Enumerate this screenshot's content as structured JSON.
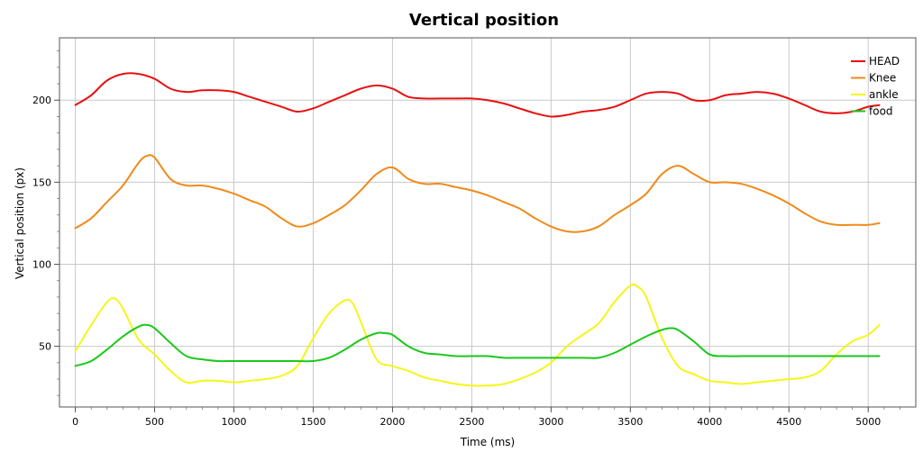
{
  "chart_data": {
    "type": "line",
    "title": "Vertical position",
    "xlabel": "Time (ms)",
    "ylabel": "Vertical position (px)",
    "xlim": [
      -100,
      5300
    ],
    "ylim": [
      13,
      238
    ],
    "xticks": [
      0,
      500,
      1000,
      1500,
      2000,
      2500,
      3000,
      3500,
      4000,
      4500,
      5000
    ],
    "xtick_labels": [
      "0",
      "500",
      "1000",
      "1500",
      "2000",
      "2500",
      "3000",
      "3500",
      "4000",
      "4500",
      "5000"
    ],
    "yticks": [
      50,
      100,
      150,
      200
    ],
    "ytick_labels": [
      "50",
      "100",
      "150",
      "200"
    ],
    "grid": true,
    "legend_position": "top-right",
    "series": [
      {
        "name": "HEAD",
        "color": "#e81010",
        "x": [
          0,
          100,
          200,
          300,
          400,
          500,
          600,
          700,
          800,
          900,
          1000,
          1100,
          1200,
          1300,
          1400,
          1500,
          1600,
          1700,
          1800,
          1900,
          2000,
          2100,
          2200,
          2300,
          2400,
          2500,
          2600,
          2700,
          2800,
          2900,
          3000,
          3100,
          3200,
          3300,
          3400,
          3500,
          3600,
          3700,
          3800,
          3900,
          4000,
          4100,
          4200,
          4300,
          4400,
          4500,
          4600,
          4700,
          4800,
          4900,
          5000,
          5070
        ],
        "y": [
          197,
          203,
          212,
          216,
          216,
          213,
          207,
          205,
          206,
          206,
          205,
          202,
          199,
          196,
          193,
          195,
          199,
          203,
          207,
          209,
          207,
          202,
          201,
          201,
          201,
          201,
          200,
          198,
          195,
          192,
          190,
          191,
          193,
          194,
          196,
          200,
          204,
          205,
          204,
          200,
          200,
          203,
          204,
          205,
          204,
          201,
          197,
          193,
          192,
          193,
          196,
          197
        ]
      },
      {
        "name": "Knee",
        "color": "#f08a1a",
        "x": [
          0,
          100,
          200,
          300,
          400,
          450,
          500,
          600,
          700,
          800,
          900,
          1000,
          1100,
          1200,
          1300,
          1400,
          1500,
          1600,
          1700,
          1800,
          1900,
          2000,
          2100,
          2200,
          2300,
          2400,
          2500,
          2600,
          2700,
          2800,
          2900,
          3000,
          3100,
          3200,
          3300,
          3400,
          3500,
          3600,
          3700,
          3800,
          3900,
          4000,
          4100,
          4200,
          4300,
          4400,
          4500,
          4600,
          4700,
          4800,
          4900,
          5000,
          5070
        ],
        "y": [
          122,
          128,
          138,
          148,
          162,
          166,
          165,
          152,
          148,
          148,
          146,
          143,
          139,
          135,
          128,
          123,
          125,
          130,
          136,
          145,
          155,
          159,
          152,
          149,
          149,
          147,
          145,
          142,
          138,
          134,
          128,
          123,
          120,
          120,
          123,
          130,
          136,
          143,
          155,
          160,
          155,
          150,
          150,
          149,
          146,
          142,
          137,
          131,
          126,
          124,
          124,
          124,
          125
        ]
      },
      {
        "name": "ankle",
        "color": "#f5f51a",
        "x": [
          0,
          100,
          200,
          250,
          300,
          400,
          500,
          600,
          700,
          800,
          900,
          1000,
          1100,
          1200,
          1300,
          1400,
          1500,
          1600,
          1700,
          1750,
          1800,
          1900,
          2000,
          2100,
          2200,
          2300,
          2400,
          2500,
          2600,
          2700,
          2800,
          2900,
          3000,
          3100,
          3200,
          3300,
          3400,
          3500,
          3550,
          3600,
          3700,
          3800,
          3900,
          4000,
          4100,
          4200,
          4300,
          4400,
          4500,
          4600,
          4700,
          4800,
          4900,
          5000,
          5070
        ],
        "y": [
          47,
          63,
          77,
          79,
          73,
          54,
          45,
          35,
          28,
          29,
          29,
          28,
          29,
          30,
          32,
          38,
          55,
          70,
          78,
          76,
          65,
          42,
          38,
          35,
          31,
          29,
          27,
          26,
          26,
          27,
          30,
          34,
          40,
          50,
          57,
          64,
          77,
          87,
          86,
          80,
          55,
          38,
          33,
          29,
          28,
          27,
          28,
          29,
          30,
          31,
          35,
          45,
          53,
          57,
          63
        ]
      },
      {
        "name": "food",
        "color": "#1ac81a",
        "x": [
          0,
          100,
          200,
          300,
          400,
          450,
          500,
          600,
          700,
          800,
          900,
          1000,
          1100,
          1200,
          1300,
          1400,
          1500,
          1600,
          1700,
          1800,
          1900,
          1950,
          2000,
          2100,
          2200,
          2300,
          2400,
          2500,
          2600,
          2700,
          2800,
          2900,
          3000,
          3100,
          3200,
          3300,
          3400,
          3500,
          3600,
          3700,
          3750,
          3800,
          3900,
          4000,
          4100,
          4200,
          4300,
          4400,
          4500,
          4600,
          4700,
          4800,
          4900,
          5000,
          5070
        ],
        "y": [
          38,
          41,
          48,
          56,
          62,
          63,
          61,
          52,
          44,
          42,
          41,
          41,
          41,
          41,
          41,
          41,
          41,
          43,
          48,
          54,
          58,
          58,
          57,
          50,
          46,
          45,
          44,
          44,
          44,
          43,
          43,
          43,
          43,
          43,
          43,
          43,
          46,
          51,
          56,
          60,
          61,
          60,
          53,
          45,
          44,
          44,
          44,
          44,
          44,
          44,
          44,
          44,
          44,
          44,
          44
        ]
      }
    ]
  }
}
